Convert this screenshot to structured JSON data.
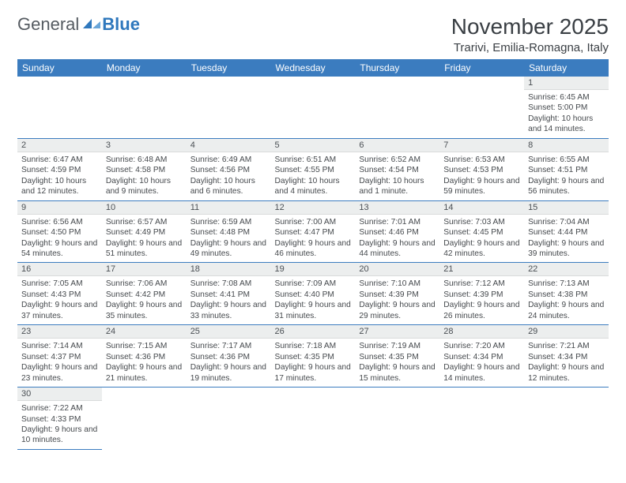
{
  "branding": {
    "part1": "General",
    "part2": "Blue",
    "part1_color": "#555b61",
    "part2_color": "#2f78bd",
    "sail_fill": "#2f78bd",
    "sail_fill_light": "#6aa6d9"
  },
  "header": {
    "title": "November 2025",
    "location": "Trarivi, Emilia-Romagna, Italy"
  },
  "style": {
    "header_bg": "#3b7cbf",
    "header_fg": "#ffffff",
    "daynum_bg": "#eceeee",
    "row_border": "#3b7cbf",
    "body_text": "#45494d",
    "page_bg": "#ffffff"
  },
  "weekdays": [
    "Sunday",
    "Monday",
    "Tuesday",
    "Wednesday",
    "Thursday",
    "Friday",
    "Saturday"
  ],
  "weeks": [
    [
      null,
      null,
      null,
      null,
      null,
      null,
      {
        "n": "1",
        "sunrise": "Sunrise: 6:45 AM",
        "sunset": "Sunset: 5:00 PM",
        "daylight": "Daylight: 10 hours and 14 minutes."
      }
    ],
    [
      {
        "n": "2",
        "sunrise": "Sunrise: 6:47 AM",
        "sunset": "Sunset: 4:59 PM",
        "daylight": "Daylight: 10 hours and 12 minutes."
      },
      {
        "n": "3",
        "sunrise": "Sunrise: 6:48 AM",
        "sunset": "Sunset: 4:58 PM",
        "daylight": "Daylight: 10 hours and 9 minutes."
      },
      {
        "n": "4",
        "sunrise": "Sunrise: 6:49 AM",
        "sunset": "Sunset: 4:56 PM",
        "daylight": "Daylight: 10 hours and 6 minutes."
      },
      {
        "n": "5",
        "sunrise": "Sunrise: 6:51 AM",
        "sunset": "Sunset: 4:55 PM",
        "daylight": "Daylight: 10 hours and 4 minutes."
      },
      {
        "n": "6",
        "sunrise": "Sunrise: 6:52 AM",
        "sunset": "Sunset: 4:54 PM",
        "daylight": "Daylight: 10 hours and 1 minute."
      },
      {
        "n": "7",
        "sunrise": "Sunrise: 6:53 AM",
        "sunset": "Sunset: 4:53 PM",
        "daylight": "Daylight: 9 hours and 59 minutes."
      },
      {
        "n": "8",
        "sunrise": "Sunrise: 6:55 AM",
        "sunset": "Sunset: 4:51 PM",
        "daylight": "Daylight: 9 hours and 56 minutes."
      }
    ],
    [
      {
        "n": "9",
        "sunrise": "Sunrise: 6:56 AM",
        "sunset": "Sunset: 4:50 PM",
        "daylight": "Daylight: 9 hours and 54 minutes."
      },
      {
        "n": "10",
        "sunrise": "Sunrise: 6:57 AM",
        "sunset": "Sunset: 4:49 PM",
        "daylight": "Daylight: 9 hours and 51 minutes."
      },
      {
        "n": "11",
        "sunrise": "Sunrise: 6:59 AM",
        "sunset": "Sunset: 4:48 PM",
        "daylight": "Daylight: 9 hours and 49 minutes."
      },
      {
        "n": "12",
        "sunrise": "Sunrise: 7:00 AM",
        "sunset": "Sunset: 4:47 PM",
        "daylight": "Daylight: 9 hours and 46 minutes."
      },
      {
        "n": "13",
        "sunrise": "Sunrise: 7:01 AM",
        "sunset": "Sunset: 4:46 PM",
        "daylight": "Daylight: 9 hours and 44 minutes."
      },
      {
        "n": "14",
        "sunrise": "Sunrise: 7:03 AM",
        "sunset": "Sunset: 4:45 PM",
        "daylight": "Daylight: 9 hours and 42 minutes."
      },
      {
        "n": "15",
        "sunrise": "Sunrise: 7:04 AM",
        "sunset": "Sunset: 4:44 PM",
        "daylight": "Daylight: 9 hours and 39 minutes."
      }
    ],
    [
      {
        "n": "16",
        "sunrise": "Sunrise: 7:05 AM",
        "sunset": "Sunset: 4:43 PM",
        "daylight": "Daylight: 9 hours and 37 minutes."
      },
      {
        "n": "17",
        "sunrise": "Sunrise: 7:06 AM",
        "sunset": "Sunset: 4:42 PM",
        "daylight": "Daylight: 9 hours and 35 minutes."
      },
      {
        "n": "18",
        "sunrise": "Sunrise: 7:08 AM",
        "sunset": "Sunset: 4:41 PM",
        "daylight": "Daylight: 9 hours and 33 minutes."
      },
      {
        "n": "19",
        "sunrise": "Sunrise: 7:09 AM",
        "sunset": "Sunset: 4:40 PM",
        "daylight": "Daylight: 9 hours and 31 minutes."
      },
      {
        "n": "20",
        "sunrise": "Sunrise: 7:10 AM",
        "sunset": "Sunset: 4:39 PM",
        "daylight": "Daylight: 9 hours and 29 minutes."
      },
      {
        "n": "21",
        "sunrise": "Sunrise: 7:12 AM",
        "sunset": "Sunset: 4:39 PM",
        "daylight": "Daylight: 9 hours and 26 minutes."
      },
      {
        "n": "22",
        "sunrise": "Sunrise: 7:13 AM",
        "sunset": "Sunset: 4:38 PM",
        "daylight": "Daylight: 9 hours and 24 minutes."
      }
    ],
    [
      {
        "n": "23",
        "sunrise": "Sunrise: 7:14 AM",
        "sunset": "Sunset: 4:37 PM",
        "daylight": "Daylight: 9 hours and 23 minutes."
      },
      {
        "n": "24",
        "sunrise": "Sunrise: 7:15 AM",
        "sunset": "Sunset: 4:36 PM",
        "daylight": "Daylight: 9 hours and 21 minutes."
      },
      {
        "n": "25",
        "sunrise": "Sunrise: 7:17 AM",
        "sunset": "Sunset: 4:36 PM",
        "daylight": "Daylight: 9 hours and 19 minutes."
      },
      {
        "n": "26",
        "sunrise": "Sunrise: 7:18 AM",
        "sunset": "Sunset: 4:35 PM",
        "daylight": "Daylight: 9 hours and 17 minutes."
      },
      {
        "n": "27",
        "sunrise": "Sunrise: 7:19 AM",
        "sunset": "Sunset: 4:35 PM",
        "daylight": "Daylight: 9 hours and 15 minutes."
      },
      {
        "n": "28",
        "sunrise": "Sunrise: 7:20 AM",
        "sunset": "Sunset: 4:34 PM",
        "daylight": "Daylight: 9 hours and 14 minutes."
      },
      {
        "n": "29",
        "sunrise": "Sunrise: 7:21 AM",
        "sunset": "Sunset: 4:34 PM",
        "daylight": "Daylight: 9 hours and 12 minutes."
      }
    ],
    [
      {
        "n": "30",
        "sunrise": "Sunrise: 7:22 AM",
        "sunset": "Sunset: 4:33 PM",
        "daylight": "Daylight: 9 hours and 10 minutes."
      },
      null,
      null,
      null,
      null,
      null,
      null
    ]
  ]
}
